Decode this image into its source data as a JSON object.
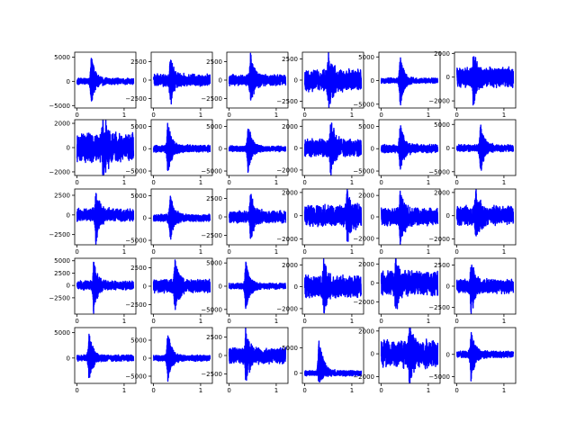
{
  "figure": {
    "rows": 5,
    "cols": 6,
    "series_color": "#0000ff",
    "axis_color": "#000000",
    "background": "#ffffff",
    "grid": false,
    "legend": "none"
  },
  "chart_data": [
    {
      "type": "line",
      "panel": [
        0,
        0
      ],
      "xlim": [
        -0.05,
        1.25
      ],
      "ylim": [
        -5500,
        6000
      ],
      "xticks": [
        0,
        1
      ],
      "xticklabels": [
        "0",
        "1"
      ],
      "yticks": [
        -5000,
        0,
        5000
      ],
      "yticklabels": [
        "−5000",
        "0",
        "5000"
      ],
      "spike_at": 0.3,
      "spike_max": 5500,
      "spike_min": -5000,
      "noise": 700,
      "duration": 1.2
    },
    {
      "type": "line",
      "panel": [
        0,
        1
      ],
      "xlim": [
        -0.05,
        1.25
      ],
      "ylim": [
        -3800,
        3800
      ],
      "xticks": [
        0,
        1
      ],
      "xticklabels": [
        "0",
        "1"
      ],
      "yticks": [
        -2500,
        0,
        2500
      ],
      "yticklabels": [
        "−2500",
        "0",
        "2500"
      ],
      "spike_at": 0.35,
      "spike_max": 3500,
      "spike_min": -3500,
      "noise": 900,
      "duration": 1.2
    },
    {
      "type": "line",
      "panel": [
        0,
        2
      ],
      "xlim": [
        -0.05,
        1.25
      ],
      "ylim": [
        -3800,
        3800
      ],
      "xticks": [
        0,
        1
      ],
      "xticklabels": [
        "0",
        "1"
      ],
      "yticks": [
        -2500,
        0,
        2500
      ],
      "yticklabels": [
        "−2500",
        "0",
        "2500"
      ],
      "spike_at": 0.45,
      "spike_max": 3500,
      "spike_min": -3200,
      "noise": 800,
      "duration": 1.2
    },
    {
      "type": "line",
      "panel": [
        0,
        3
      ],
      "xlim": [
        -0.05,
        1.25
      ],
      "ylim": [
        -3300,
        3300
      ],
      "xticks": [
        0,
        1
      ],
      "xticklabels": [
        "0",
        "1"
      ],
      "yticks": [
        -2500,
        0,
        2500
      ],
      "yticklabels": [
        "−2500",
        "0",
        "2500"
      ],
      "spike_at": 0.5,
      "spike_max": 3000,
      "spike_min": -3000,
      "noise": 1400,
      "duration": 1.2
    },
    {
      "type": "line",
      "panel": [
        0,
        4
      ],
      "xlim": [
        -0.05,
        1.25
      ],
      "ylim": [
        -5800,
        6000
      ],
      "xticks": [
        0,
        1
      ],
      "xticklabels": [
        "0",
        "1"
      ],
      "yticks": [
        -5000,
        0,
        5000
      ],
      "yticklabels": [
        "−5000",
        "0",
        "5000"
      ],
      "spike_at": 0.4,
      "spike_max": 5500,
      "spike_min": -5500,
      "noise": 600,
      "duration": 1.2
    },
    {
      "type": "line",
      "panel": [
        0,
        5
      ],
      "xlim": [
        -0.05,
        1.25
      ],
      "ylim": [
        -2600,
        2100
      ],
      "xticks": [
        0,
        1
      ],
      "xticklabels": [
        "0",
        "1"
      ],
      "yticks": [
        -2000,
        0,
        2000
      ],
      "yticklabels": [
        "−2000",
        "0",
        "2000"
      ],
      "spike_at": 0.35,
      "spike_max": 1900,
      "spike_min": -2400,
      "noise": 900,
      "duration": 1.2
    },
    {
      "type": "line",
      "panel": [
        1,
        0
      ],
      "xlim": [
        -0.05,
        1.25
      ],
      "ylim": [
        -2300,
        2300
      ],
      "xticks": [
        0,
        1
      ],
      "xticklabels": [
        "0",
        "1"
      ],
      "yticks": [
        -2000,
        0,
        2000
      ],
      "yticklabels": [
        "−2000",
        "0",
        "2000"
      ],
      "spike_at": 0.55,
      "spike_max": 2200,
      "spike_min": -2200,
      "noise": 1300,
      "duration": 1.2
    },
    {
      "type": "line",
      "panel": [
        1,
        1
      ],
      "xlim": [
        -0.05,
        1.25
      ],
      "ylim": [
        -6000,
        6500
      ],
      "xticks": [
        0,
        1
      ],
      "xticklabels": [
        "0",
        "1"
      ],
      "yticks": [
        -5000,
        0,
        5000
      ],
      "yticklabels": [
        "−5000",
        "0",
        "5000"
      ],
      "spike_at": 0.3,
      "spike_max": 6000,
      "spike_min": -5500,
      "noise": 900,
      "duration": 1.2
    },
    {
      "type": "line",
      "panel": [
        1,
        2
      ],
      "xlim": [
        -0.05,
        1.25
      ],
      "ylim": [
        -6000,
        6500
      ],
      "xticks": [
        0,
        1
      ],
      "xticklabels": [
        "0",
        "1"
      ],
      "yticks": [
        -5000,
        0,
        5000
      ],
      "yticklabels": [
        "−5000",
        "0",
        "5000"
      ],
      "spike_at": 0.4,
      "spike_max": 6000,
      "spike_min": -5500,
      "noise": 700,
      "duration": 1.2
    },
    {
      "type": "line",
      "panel": [
        1,
        3
      ],
      "xlim": [
        -0.05,
        1.25
      ],
      "ylim": [
        -2500,
        2600
      ],
      "xticks": [
        0,
        1
      ],
      "xticklabels": [
        "0",
        "1"
      ],
      "yticks": [
        -2000,
        0,
        2000
      ],
      "yticklabels": [
        "−2000",
        "0",
        "2000"
      ],
      "spike_at": 0.55,
      "spike_max": 2400,
      "spike_min": -2400,
      "noise": 900,
      "duration": 1.2
    },
    {
      "type": "line",
      "panel": [
        1,
        4
      ],
      "xlim": [
        -0.05,
        1.25
      ],
      "ylim": [
        -6000,
        6500
      ],
      "xticks": [
        0,
        1
      ],
      "xticklabels": [
        "0",
        "1"
      ],
      "yticks": [
        -5000,
        0,
        5000
      ],
      "yticklabels": [
        "−5000",
        "0",
        "5000"
      ],
      "spike_at": 0.4,
      "spike_max": 6000,
      "spike_min": -5000,
      "noise": 1000,
      "duration": 1.2
    },
    {
      "type": "line",
      "panel": [
        1,
        5
      ],
      "xlim": [
        -0.05,
        1.25
      ],
      "ylim": [
        -5800,
        6000
      ],
      "xticks": [
        0,
        1
      ],
      "xticklabels": [
        "0",
        "1"
      ],
      "yticks": [
        -5000,
        0,
        5000
      ],
      "yticklabels": [
        "−5000",
        "0",
        "5000"
      ],
      "spike_at": 0.5,
      "spike_max": 5500,
      "spike_min": -5500,
      "noise": 800,
      "duration": 1.2
    },
    {
      "type": "line",
      "panel": [
        2,
        0
      ],
      "xlim": [
        -0.05,
        1.25
      ],
      "ylim": [
        -3800,
        3300
      ],
      "xticks": [
        0,
        1
      ],
      "xticklabels": [
        "0",
        "1"
      ],
      "yticks": [
        -2500,
        0,
        2500
      ],
      "yticklabels": [
        "−2500",
        "0",
        "2500"
      ],
      "spike_at": 0.4,
      "spike_max": 3000,
      "spike_min": -3600,
      "noise": 900,
      "duration": 1.2
    },
    {
      "type": "line",
      "panel": [
        2,
        1
      ],
      "xlim": [
        -0.05,
        1.25
      ],
      "ylim": [
        -6000,
        6500
      ],
      "xticks": [
        0,
        1
      ],
      "xticklabels": [
        "0",
        "1"
      ],
      "yticks": [
        -5000,
        0,
        5000
      ],
      "yticklabels": [
        "−5000",
        "0",
        "5000"
      ],
      "spike_at": 0.35,
      "spike_max": 6000,
      "spike_min": -5500,
      "noise": 900,
      "duration": 1.2
    },
    {
      "type": "line",
      "panel": [
        2,
        2
      ],
      "xlim": [
        -0.05,
        1.25
      ],
      "ylim": [
        -3800,
        3800
      ],
      "xticks": [
        0,
        1
      ],
      "xticklabels": [
        "0",
        "1"
      ],
      "yticks": [
        -2500,
        0,
        2500
      ],
      "yticklabels": [
        "−2500",
        "0",
        "2500"
      ],
      "spike_at": 0.45,
      "spike_max": 3500,
      "spike_min": -3500,
      "noise": 900,
      "duration": 1.2
    },
    {
      "type": "line",
      "panel": [
        2,
        3
      ],
      "xlim": [
        -0.05,
        1.25
      ],
      "ylim": [
        -2500,
        2300
      ],
      "xticks": [
        0,
        1
      ],
      "xticklabels": [
        "0",
        "1"
      ],
      "yticks": [
        -2000,
        0,
        2000
      ],
      "yticklabels": [
        "−2000",
        "0",
        "2000"
      ],
      "spike_at": 0.9,
      "spike_max": 2200,
      "spike_min": -2400,
      "noise": 1000,
      "duration": 1.2
    },
    {
      "type": "line",
      "panel": [
        2,
        4
      ],
      "xlim": [
        -0.05,
        1.25
      ],
      "ylim": [
        -2600,
        2600
      ],
      "xticks": [
        0,
        1
      ],
      "xticklabels": [
        "0",
        "1"
      ],
      "yticks": [
        -2000,
        0,
        2000
      ],
      "yticklabels": [
        "−2000",
        "0",
        "2000"
      ],
      "spike_at": 0.4,
      "spike_max": 2400,
      "spike_min": -2500,
      "noise": 900,
      "duration": 1.2
    },
    {
      "type": "line",
      "panel": [
        2,
        5
      ],
      "xlim": [
        -0.05,
        1.25
      ],
      "ylim": [
        -2500,
        2300
      ],
      "xticks": [
        0,
        1
      ],
      "xticklabels": [
        "0",
        "1"
      ],
      "yticks": [
        -2000,
        0,
        2000
      ],
      "yticklabels": [
        "−2000",
        "0",
        "2000"
      ],
      "spike_at": 0.4,
      "spike_max": 2200,
      "spike_min": -2400,
      "noise": 900,
      "duration": 1.2
    },
    {
      "type": "line",
      "panel": [
        3,
        0
      ],
      "xlim": [
        -0.05,
        1.25
      ],
      "ylim": [
        -5800,
        5500
      ],
      "xticks": [
        0,
        1
      ],
      "xticklabels": [
        "0",
        "1"
      ],
      "yticks": [
        -2500,
        0,
        2500,
        5000
      ],
      "yticklabels": [
        "−2500",
        "0",
        "2500",
        "5000"
      ],
      "spike_at": 0.35,
      "spike_max": 5000,
      "spike_min": -5500,
      "noise": 1000,
      "duration": 1.2
    },
    {
      "type": "line",
      "panel": [
        3,
        1
      ],
      "xlim": [
        -0.05,
        1.25
      ],
      "ylim": [
        -3800,
        3800
      ],
      "xticks": [
        0,
        1
      ],
      "xticklabels": [
        "0",
        "1"
      ],
      "yticks": [
        -2500,
        0,
        2500
      ],
      "yticklabels": [
        "−2500",
        "0",
        "2500"
      ],
      "spike_at": 0.45,
      "spike_max": 3500,
      "spike_min": -3500,
      "noise": 1000,
      "duration": 1.2
    },
    {
      "type": "line",
      "panel": [
        3,
        2
      ],
      "xlim": [
        -0.05,
        1.25
      ],
      "ylim": [
        -6000,
        6000
      ],
      "xticks": [
        0,
        1
      ],
      "xticklabels": [
        "0",
        "1"
      ],
      "yticks": [
        -5000,
        0,
        5000
      ],
      "yticklabels": [
        "−5000",
        "0",
        "5000"
      ],
      "spike_at": 0.35,
      "spike_max": 5800,
      "spike_min": -5500,
      "noise": 700,
      "duration": 1.2
    },
    {
      "type": "line",
      "panel": [
        3,
        3
      ],
      "xlim": [
        -0.05,
        1.25
      ],
      "ylim": [
        -2500,
        2600
      ],
      "xticks": [
        0,
        1
      ],
      "xticklabels": [
        "0",
        "1"
      ],
      "yticks": [
        -2000,
        0,
        2000
      ],
      "yticklabels": [
        "−2000",
        "0",
        "2000"
      ],
      "spike_at": 0.4,
      "spike_max": 2300,
      "spike_min": -2400,
      "noise": 1100,
      "duration": 1.2
    },
    {
      "type": "line",
      "panel": [
        3,
        4
      ],
      "xlim": [
        -0.05,
        1.25
      ],
      "ylim": [
        -3300,
        2600
      ],
      "xticks": [
        0,
        1
      ],
      "xticklabels": [
        "0",
        "1"
      ],
      "yticks": [
        -2000,
        0,
        2000
      ],
      "yticklabels": [
        "−2000",
        "0",
        "2000"
      ],
      "spike_at": 0.3,
      "spike_max": 2400,
      "spike_min": -3100,
      "noise": 1400,
      "duration": 1.2
    },
    {
      "type": "line",
      "panel": [
        3,
        5
      ],
      "xlim": [
        -0.05,
        1.25
      ],
      "ylim": [
        -3300,
        3300
      ],
      "xticks": [
        0,
        1
      ],
      "xticklabels": [
        "0",
        "1"
      ],
      "yticks": [
        -2500,
        0,
        2500
      ],
      "yticklabels": [
        "−2500",
        "0",
        "2500"
      ],
      "spike_at": 0.3,
      "spike_max": 3100,
      "spike_min": -3100,
      "noise": 900,
      "duration": 1.2
    },
    {
      "type": "line",
      "panel": [
        4,
        0
      ],
      "xlim": [
        -0.05,
        1.25
      ],
      "ylim": [
        -5000,
        6000
      ],
      "xticks": [
        0,
        1
      ],
      "xticklabels": [
        "0",
        "1"
      ],
      "yticks": [
        0,
        5000
      ],
      "yticklabels": [
        "0",
        "5000"
      ],
      "spike_at": 0.25,
      "spike_max": 5500,
      "spike_min": -4500,
      "noise": 700,
      "duration": 1.2
    },
    {
      "type": "line",
      "panel": [
        4,
        1
      ],
      "xlim": [
        -0.05,
        1.25
      ],
      "ylim": [
        -7000,
        8500
      ],
      "xticks": [
        0,
        1
      ],
      "xticklabels": [
        "0",
        "1"
      ],
      "yticks": [
        -5000,
        0,
        5000
      ],
      "yticklabels": [
        "−5000",
        "0",
        "5000"
      ],
      "spike_at": 0.3,
      "spike_max": 8000,
      "spike_min": -6500,
      "noise": 900,
      "duration": 1.2
    },
    {
      "type": "line",
      "panel": [
        4,
        2
      ],
      "xlim": [
        -0.05,
        1.25
      ],
      "ylim": [
        -3800,
        3800
      ],
      "xticks": [
        0,
        1
      ],
      "xticklabels": [
        "0",
        "1"
      ],
      "yticks": [
        -2500,
        0,
        2500
      ],
      "yticklabels": [
        "−2500",
        "0",
        "2500"
      ],
      "spike_at": 0.35,
      "spike_max": 3500,
      "spike_min": -3500,
      "noise": 1200,
      "duration": 1.2
    },
    {
      "type": "line",
      "panel": [
        4,
        3
      ],
      "xlim": [
        -0.05,
        1.25
      ],
      "ylim": [
        -2000,
        9000
      ],
      "xticks": [
        0,
        1
      ],
      "xticklabels": [
        "0",
        "1"
      ],
      "yticks": [
        0,
        5000
      ],
      "yticklabels": [
        "0",
        "5000"
      ],
      "spike_at": 0.3,
      "spike_max": 8500,
      "spike_min": -1800,
      "noise": 600,
      "duration": 1.2
    },
    {
      "type": "line",
      "panel": [
        4,
        4
      ],
      "xlim": [
        -0.05,
        1.25
      ],
      "ylim": [
        -2600,
        2300
      ],
      "xticks": [
        0,
        1
      ],
      "xticklabels": [
        "0",
        "1"
      ],
      "yticks": [
        -2000,
        0,
        2000
      ],
      "yticklabels": [
        "−2000",
        "0",
        "2000"
      ],
      "spike_at": 0.6,
      "spike_max": 2100,
      "spike_min": -2500,
      "noise": 1300,
      "duration": 1.2
    },
    {
      "type": "line",
      "panel": [
        4,
        5
      ],
      "xlim": [
        -0.05,
        1.25
      ],
      "ylim": [
        -6500,
        6000
      ],
      "xticks": [
        0,
        1
      ],
      "xticklabels": [
        "0",
        "1"
      ],
      "yticks": [
        -5000,
        0
      ],
      "yticklabels": [
        "−5000",
        "0"
      ],
      "spike_at": 0.3,
      "spike_max": 5500,
      "spike_min": -6000,
      "noise": 800,
      "duration": 1.2
    }
  ]
}
